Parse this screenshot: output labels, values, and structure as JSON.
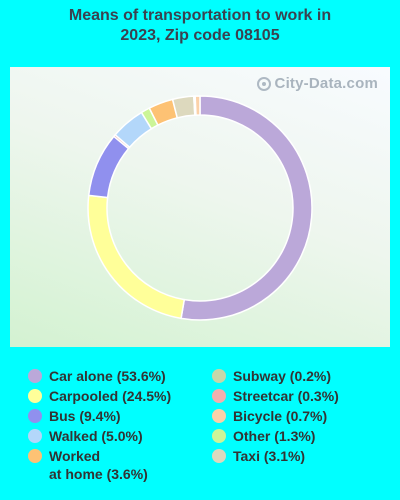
{
  "chart_data": {
    "type": "pie",
    "title": "Means of transportation to work in\n2023, Zip code 08105",
    "slices": [
      {
        "label": "Car alone (53.6%)",
        "value": 53.6,
        "color": "#bba8d9"
      },
      {
        "label": "Carpooled (24.5%)",
        "value": 24.5,
        "color": "#ffff99"
      },
      {
        "label": "Bus (9.4%)",
        "value": 9.4,
        "color": "#9090ee"
      },
      {
        "label": "Streetcar (0.3%)",
        "value": 0.3,
        "color": "#f2b0ae"
      },
      {
        "label": "Walked (5.0%)",
        "value": 5.0,
        "color": "#b3d7fa"
      },
      {
        "label": "Other (1.3%)",
        "value": 1.3,
        "color": "#ccf598"
      },
      {
        "label": "Worked\nat home (3.6%)",
        "value": 3.6,
        "color": "#fdc274"
      },
      {
        "label": "Taxi (3.1%)",
        "value": 3.1,
        "color": "#ddd9be"
      },
      {
        "label": "Subway (0.2%)",
        "value": 0.2,
        "color": "#c6d7a9"
      },
      {
        "label": "Bicycle (0.7%)",
        "value": 0.7,
        "color": "#fbd1a9"
      }
    ],
    "legend": {
      "left": [
        {
          "label": "Car alone (53.6%)",
          "color": "#bba8d9"
        },
        {
          "label": "Carpooled (24.5%)",
          "color": "#ffff99"
        },
        {
          "label": "Bus (9.4%)",
          "color": "#9090ee"
        },
        {
          "label": "Walked (5.0%)",
          "color": "#b3d7fa"
        },
        {
          "label": "Worked\nat home (3.6%)",
          "color": "#fdc274"
        }
      ],
      "right": [
        {
          "label": "Subway (0.2%)",
          "color": "#c6d7a9"
        },
        {
          "label": "Streetcar (0.3%)",
          "color": "#f2b0ae"
        },
        {
          "label": "Bicycle (0.7%)",
          "color": "#fbd1a9"
        },
        {
          "label": "Other (1.3%)",
          "color": "#ccf598"
        },
        {
          "label": "Taxi (3.1%)",
          "color": "#ddd9be"
        }
      ]
    }
  },
  "watermark": "City-Data.com"
}
